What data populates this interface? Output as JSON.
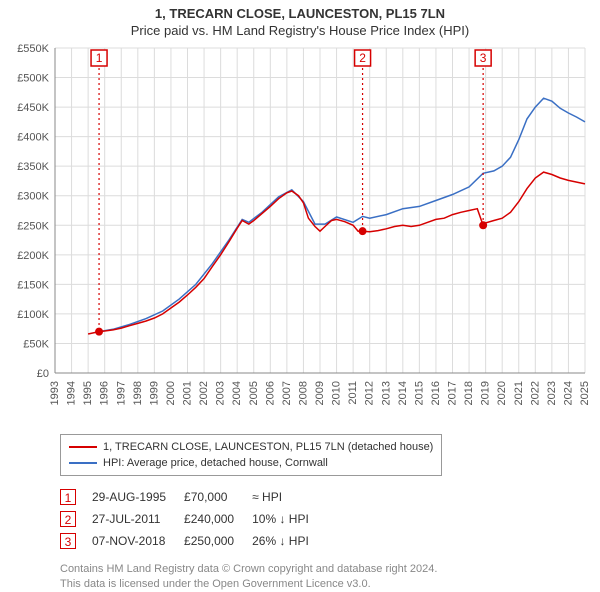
{
  "title_line1": "1, TRECARN CLOSE, LAUNCESTON, PL15 7LN",
  "title_line2": "Price paid vs. HM Land Registry's House Price Index (HPI)",
  "colors": {
    "price_paid": "#d60000",
    "hpi": "#3a6fc4",
    "grid": "#dcdcdc",
    "axis": "#888888",
    "text": "#555555",
    "footer": "#888888",
    "bg": "#ffffff"
  },
  "chart": {
    "type": "line",
    "x_start_year": 1993,
    "x_end_year": 2025,
    "y_min": 0,
    "y_max": 550000,
    "y_tick_step": 50000,
    "y_tick_prefix": "£",
    "y_tick_suffix": "K",
    "line_width": 1.5,
    "marker_radius": 4,
    "marker_box_size": 16
  },
  "price_paid_series": [
    {
      "year": 1995.66,
      "value": 70000
    },
    {
      "year": 2011.57,
      "value": 240000
    },
    {
      "year": 2018.85,
      "value": 250000
    }
  ],
  "hpi_series": [
    [
      1995.0,
      66000
    ],
    [
      1995.66,
      70000
    ],
    [
      1996.0,
      71000
    ],
    [
      1996.5,
      73000
    ],
    [
      1997.0,
      76000
    ],
    [
      1997.5,
      80000
    ],
    [
      1998.0,
      84000
    ],
    [
      1998.5,
      88000
    ],
    [
      1999.0,
      93000
    ],
    [
      1999.5,
      100000
    ],
    [
      2000.0,
      110000
    ],
    [
      2000.5,
      120000
    ],
    [
      2001.0,
      132000
    ],
    [
      2001.5,
      145000
    ],
    [
      2002.0,
      160000
    ],
    [
      2002.5,
      180000
    ],
    [
      2003.0,
      200000
    ],
    [
      2003.5,
      222000
    ],
    [
      2004.0,
      245000
    ],
    [
      2004.3,
      258000
    ],
    [
      2004.7,
      252000
    ],
    [
      2005.0,
      258000
    ],
    [
      2005.5,
      270000
    ],
    [
      2006.0,
      282000
    ],
    [
      2006.5,
      295000
    ],
    [
      2007.0,
      305000
    ],
    [
      2007.3,
      308000
    ],
    [
      2007.7,
      300000
    ],
    [
      2008.0,
      288000
    ],
    [
      2008.3,
      262000
    ],
    [
      2008.7,
      248000
    ],
    [
      2009.0,
      240000
    ],
    [
      2009.3,
      248000
    ],
    [
      2009.7,
      258000
    ],
    [
      2010.0,
      260000
    ],
    [
      2010.5,
      256000
    ],
    [
      2011.0,
      250000
    ],
    [
      2011.3,
      240000
    ],
    [
      2011.57,
      240000
    ],
    [
      2012.0,
      239000
    ],
    [
      2012.5,
      241000
    ],
    [
      2013.0,
      244000
    ],
    [
      2013.5,
      248000
    ],
    [
      2014.0,
      250000
    ],
    [
      2014.5,
      248000
    ],
    [
      2015.0,
      250000
    ],
    [
      2015.5,
      255000
    ],
    [
      2016.0,
      260000
    ],
    [
      2016.5,
      262000
    ],
    [
      2017.0,
      268000
    ],
    [
      2017.5,
      272000
    ],
    [
      2018.0,
      275000
    ],
    [
      2018.5,
      278000
    ],
    [
      2018.85,
      250000
    ],
    [
      2019.0,
      254000
    ],
    [
      2019.5,
      258000
    ],
    [
      2020.0,
      262000
    ],
    [
      2020.5,
      272000
    ],
    [
      2021.0,
      290000
    ],
    [
      2021.5,
      312000
    ],
    [
      2022.0,
      330000
    ],
    [
      2022.5,
      340000
    ],
    [
      2023.0,
      336000
    ],
    [
      2023.5,
      330000
    ],
    [
      2024.0,
      326000
    ],
    [
      2024.5,
      323000
    ],
    [
      2025.0,
      320000
    ]
  ],
  "hpi_blue_series": [
    [
      1995.66,
      70000
    ],
    [
      1996.5,
      74000
    ],
    [
      1997.5,
      82000
    ],
    [
      1998.5,
      92000
    ],
    [
      1999.5,
      105000
    ],
    [
      2000.5,
      125000
    ],
    [
      2001.5,
      150000
    ],
    [
      2002.5,
      185000
    ],
    [
      2003.5,
      225000
    ],
    [
      2004.3,
      260000
    ],
    [
      2004.7,
      255000
    ],
    [
      2005.5,
      272000
    ],
    [
      2006.5,
      298000
    ],
    [
      2007.3,
      310000
    ],
    [
      2008.0,
      290000
    ],
    [
      2008.7,
      252000
    ],
    [
      2009.3,
      252000
    ],
    [
      2010.0,
      264000
    ],
    [
      2011.0,
      255000
    ],
    [
      2011.57,
      265000
    ],
    [
      2012.0,
      262000
    ],
    [
      2013.0,
      268000
    ],
    [
      2014.0,
      278000
    ],
    [
      2015.0,
      282000
    ],
    [
      2016.0,
      292000
    ],
    [
      2017.0,
      302000
    ],
    [
      2018.0,
      315000
    ],
    [
      2018.85,
      338000
    ],
    [
      2019.5,
      342000
    ],
    [
      2020.0,
      350000
    ],
    [
      2020.5,
      365000
    ],
    [
      2021.0,
      395000
    ],
    [
      2021.5,
      430000
    ],
    [
      2022.0,
      450000
    ],
    [
      2022.5,
      465000
    ],
    [
      2023.0,
      460000
    ],
    [
      2023.5,
      448000
    ],
    [
      2024.0,
      440000
    ],
    [
      2024.5,
      433000
    ],
    [
      2025.0,
      425000
    ]
  ],
  "sale_markers": [
    {
      "n": "1",
      "year": 1995.66,
      "value": 70000
    },
    {
      "n": "2",
      "year": 2011.57,
      "value": 240000
    },
    {
      "n": "3",
      "year": 2018.85,
      "value": 250000
    }
  ],
  "legend": {
    "items": [
      {
        "color_key": "price_paid",
        "label": "1, TRECARN CLOSE, LAUNCESTON, PL15 7LN (detached house)"
      },
      {
        "color_key": "hpi",
        "label": "HPI: Average price, detached house, Cornwall"
      }
    ]
  },
  "sales_table": [
    {
      "n": "1",
      "date": "29-AUG-1995",
      "price": "£70,000",
      "delta": "≈ HPI"
    },
    {
      "n": "2",
      "date": "27-JUL-2011",
      "price": "£240,000",
      "delta": "10% ↓ HPI"
    },
    {
      "n": "3",
      "date": "07-NOV-2018",
      "price": "£250,000",
      "delta": "26% ↓ HPI"
    }
  ],
  "footer_line1": "Contains HM Land Registry data © Crown copyright and database right 2024.",
  "footer_line2": "This data is licensed under the Open Government Licence v3.0."
}
